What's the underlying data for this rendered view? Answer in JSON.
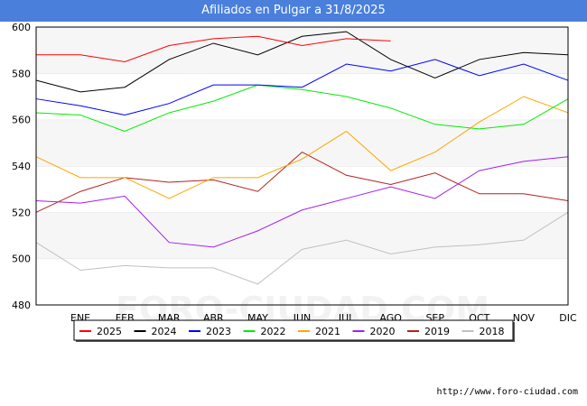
{
  "header": {
    "title": "Afiliados en Pulgar a 31/8/2025"
  },
  "footer": {
    "url": "http://www.foro-ciudad.com"
  },
  "watermark": "FORO-CIUDAD.COM",
  "chart_data": {
    "type": "line",
    "title": "Afiliados en Pulgar a 31/8/2025",
    "xlabel": "",
    "ylabel": "",
    "categories": [
      "",
      "ENE",
      "FEB",
      "MAR",
      "ABR",
      "MAY",
      "JUN",
      "JUL",
      "AGO",
      "SEP",
      "OCT",
      "NOV",
      "DIC"
    ],
    "ylim": [
      480,
      600
    ],
    "yticks": [
      480,
      500,
      520,
      540,
      560,
      580,
      600
    ],
    "grid": "horizontal bands",
    "legend_position": "bottom",
    "series": [
      {
        "name": "2025",
        "color": "#ff0000",
        "values": [
          588,
          588,
          585,
          592,
          595,
          596,
          592,
          595,
          594,
          null,
          null,
          null,
          null
        ]
      },
      {
        "name": "2024",
        "color": "#000000",
        "values": [
          577,
          572,
          574,
          586,
          593,
          588,
          596,
          598,
          586,
          578,
          586,
          589,
          588
        ]
      },
      {
        "name": "2023",
        "color": "#0000ff",
        "values": [
          569,
          566,
          562,
          567,
          575,
          575,
          574,
          584,
          581,
          586,
          579,
          584,
          577
        ]
      },
      {
        "name": "2022",
        "color": "#00ee00",
        "values": [
          563,
          562,
          555,
          563,
          568,
          575,
          573,
          570,
          565,
          558,
          556,
          558,
          569
        ]
      },
      {
        "name": "2021",
        "color": "#ffa500",
        "values": [
          544,
          535,
          535,
          526,
          535,
          535,
          543,
          555,
          538,
          546,
          559,
          570,
          563
        ]
      },
      {
        "name": "2020",
        "color": "#a020f0",
        "values": [
          525,
          524,
          527,
          507,
          505,
          512,
          521,
          526,
          531,
          526,
          538,
          542,
          544
        ]
      },
      {
        "name": "2019",
        "color": "#b22222",
        "values": [
          520,
          529,
          535,
          533,
          534,
          529,
          546,
          536,
          532,
          537,
          528,
          528,
          525
        ]
      },
      {
        "name": "2018",
        "color": "#c0c0c0",
        "values": [
          507,
          495,
          497,
          496,
          496,
          489,
          504,
          508,
          502,
          505,
          506,
          508,
          520
        ]
      }
    ]
  }
}
